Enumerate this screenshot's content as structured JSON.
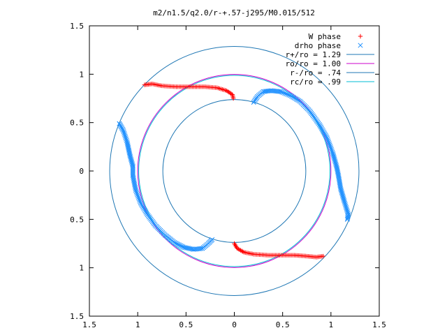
{
  "chart_data": {
    "type": "scatter",
    "title": "m2/n1.5/q2.0/r-+.57-j295/M0.015/512",
    "xlabel": "",
    "ylabel": "",
    "xlim": [
      -1.5,
      1.5
    ],
    "ylim": [
      -1.5,
      1.5
    ],
    "x_ticks": [
      "1.5",
      "1",
      "0.5",
      "0",
      "0.5",
      "1",
      "1.5"
    ],
    "y_ticks": [
      "1.5",
      "1",
      "0.5",
      "0",
      "0.5",
      "1",
      "1.5"
    ],
    "x_tick_values": [
      -1.5,
      -1,
      -0.5,
      0,
      0.5,
      1,
      1.5
    ],
    "y_tick_values": [
      1.5,
      1,
      0.5,
      0,
      -0.5,
      -1,
      -1.5
    ],
    "grid": false,
    "legend_position": "top-right",
    "series": [
      {
        "name": "W phase",
        "marker": "plus",
        "color": "#ff0000",
        "segments": [
          [
            [
              -0.93,
              0.89
            ],
            [
              -0.85,
              0.9
            ],
            [
              -0.75,
              0.88
            ],
            [
              -0.6,
              0.87
            ],
            [
              -0.45,
              0.87
            ],
            [
              -0.3,
              0.87
            ],
            [
              -0.18,
              0.86
            ],
            [
              -0.08,
              0.83
            ],
            [
              -0.02,
              0.79
            ],
            [
              -0.01,
              0.75
            ]
          ],
          [
            [
              0.0,
              -0.75
            ],
            [
              0.03,
              -0.8
            ],
            [
              0.1,
              -0.84
            ],
            [
              0.2,
              -0.86
            ],
            [
              0.35,
              -0.87
            ],
            [
              0.5,
              -0.87
            ],
            [
              0.62,
              -0.87
            ],
            [
              0.75,
              -0.88
            ],
            [
              0.85,
              -0.89
            ],
            [
              0.92,
              -0.88
            ]
          ]
        ]
      },
      {
        "name": "drho phase",
        "marker": "cross",
        "color": "#1e90ff",
        "segments": [
          [
            [
              0.2,
              0.71
            ],
            [
              0.24,
              0.77
            ],
            [
              0.3,
              0.82
            ],
            [
              0.38,
              0.83
            ],
            [
              0.48,
              0.82
            ],
            [
              0.58,
              0.78
            ],
            [
              0.68,
              0.72
            ],
            [
              0.78,
              0.62
            ],
            [
              0.88,
              0.48
            ],
            [
              0.96,
              0.34
            ],
            [
              1.02,
              0.18
            ],
            [
              1.06,
              0.04
            ],
            [
              1.08,
              -0.06
            ],
            [
              1.1,
              -0.18
            ],
            [
              1.14,
              -0.32
            ],
            [
              1.18,
              -0.45
            ],
            [
              1.17,
              -0.5
            ]
          ],
          [
            [
              -1.19,
              0.49
            ],
            [
              -1.15,
              0.42
            ],
            [
              -1.11,
              0.3
            ],
            [
              -1.08,
              0.16
            ],
            [
              -1.05,
              0.05
            ],
            [
              -1.05,
              -0.05
            ],
            [
              -1.02,
              -0.2
            ],
            [
              -0.97,
              -0.33
            ],
            [
              -0.9,
              -0.45
            ],
            [
              -0.82,
              -0.56
            ],
            [
              -0.72,
              -0.66
            ],
            [
              -0.62,
              -0.74
            ],
            [
              -0.52,
              -0.79
            ],
            [
              -0.42,
              -0.81
            ],
            [
              -0.33,
              -0.8
            ],
            [
              -0.27,
              -0.75
            ],
            [
              -0.23,
              -0.71
            ]
          ]
        ]
      },
      {
        "name": "r+/ro = 1.29",
        "type": "circle",
        "radius": 1.29,
        "color": "#1f77b4"
      },
      {
        "name": "ro/ro = 1.00",
        "type": "circle",
        "radius": 1.0,
        "color": "#cc00cc"
      },
      {
        "name": "r-/ro = .74",
        "type": "circle",
        "radius": 0.74,
        "color": "#1f77b4"
      },
      {
        "name": "rc/ro = .99",
        "type": "circle",
        "radius": 0.99,
        "color": "#00bcd4"
      }
    ]
  }
}
